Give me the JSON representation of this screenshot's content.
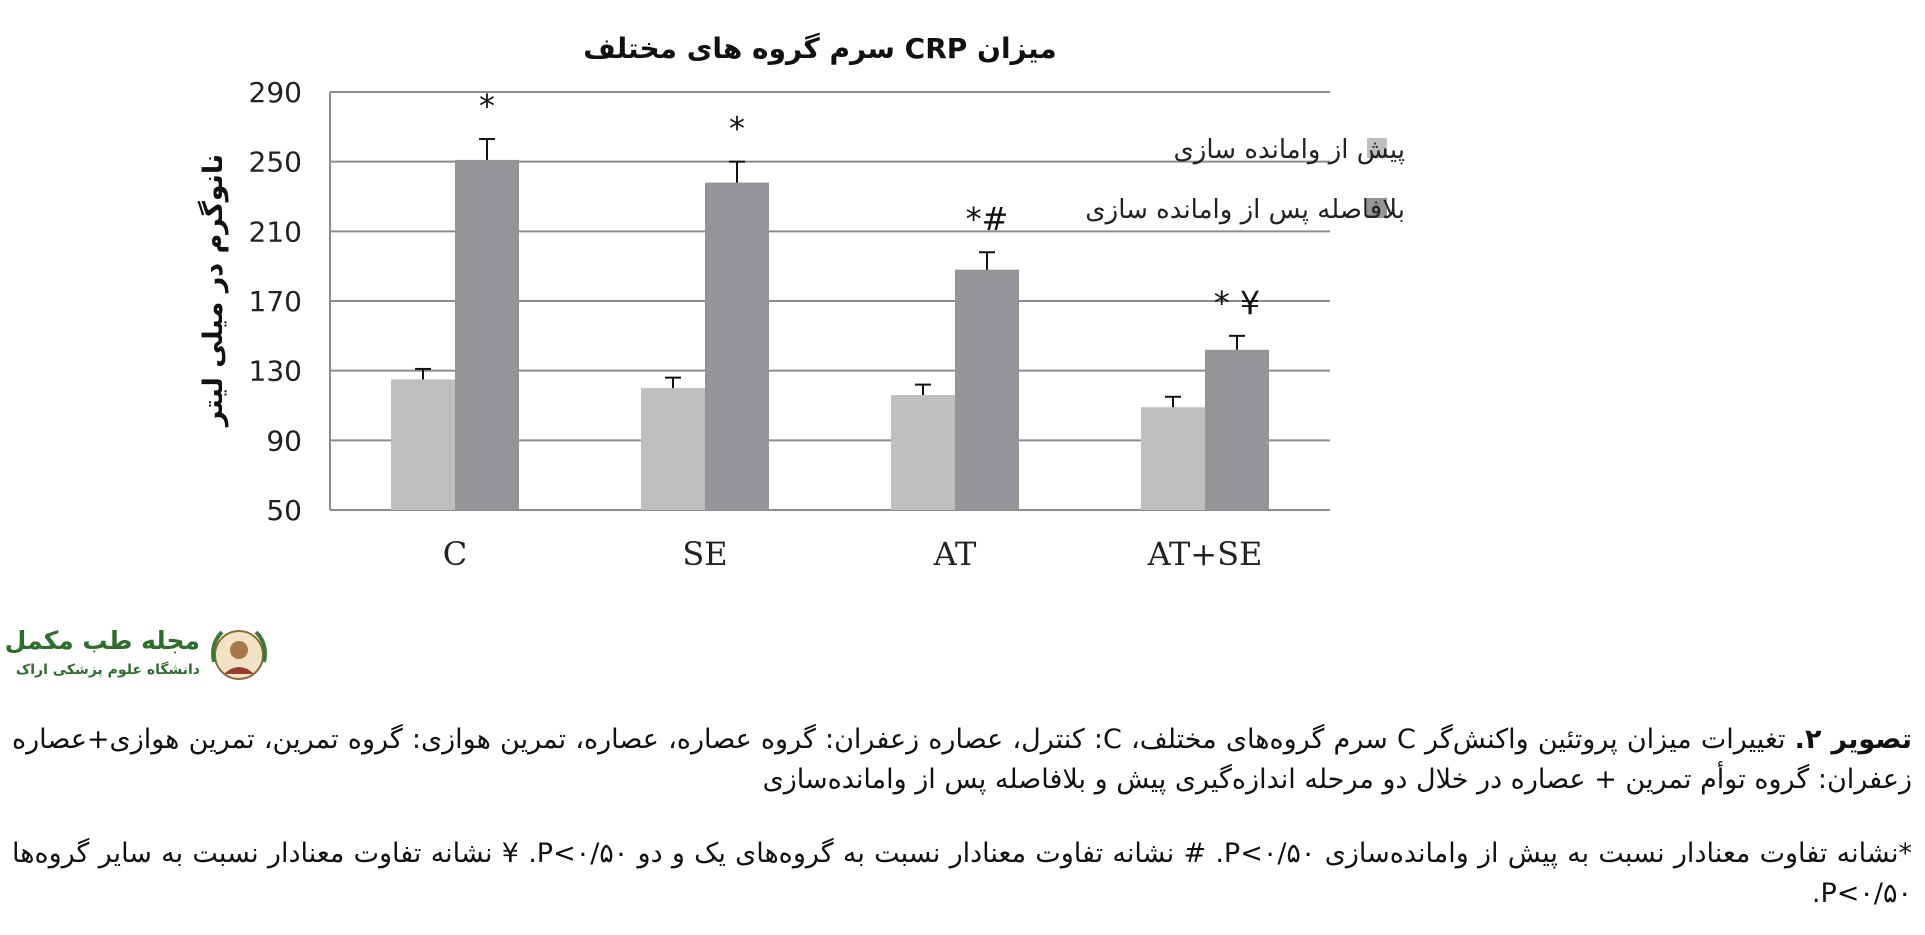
{
  "chart_data": {
    "type": "bar",
    "title": "میزان CRP سرم گروه های مختلف",
    "ylabel": "نانوگرم در میلی لیتر",
    "xlabel": "",
    "ylim": [
      50,
      290
    ],
    "yticks": [
      50,
      90,
      130,
      170,
      210,
      250,
      290
    ],
    "grid": true,
    "legend_position": "right",
    "categories": [
      "C",
      "SE",
      "AT",
      "AT+SE"
    ],
    "series": [
      {
        "name": "پیش از وامانده سازی",
        "color": "#bfbfbf",
        "values": [
          125,
          120,
          116,
          109
        ],
        "errors": [
          6,
          6,
          6,
          6
        ]
      },
      {
        "name": "بلافاصله پس از وامانده سازی",
        "color": "#939598",
        "values": [
          251,
          238,
          188,
          142
        ],
        "errors": [
          12,
          12,
          10,
          8
        ]
      }
    ],
    "annotations": [
      "*",
      "*",
      "*#",
      "* ¥"
    ]
  },
  "logo": {
    "title": "مجله طب مکمل",
    "subtitle": "دانشگاه علوم پزشکی اراک"
  },
  "caption": {
    "label": "تصویر ۲.",
    "text": " تغییرات میزان پروتئین واکنش‌گر C سرم گروه‌های مختلف، C: کنترل، عصاره زعفران: گروه عصاره، عصاره، تمرین هوازی: گروه تمرین، تمرین هوازی+عصاره زعفران: گروه توأم تمرین + عصاره در خلال دو مرحله اندازه‌گیری پیش و بلافاصله پس از وامانده‌سازی",
    "note": "*نشانه تفاوت معنادار نسبت به پیش از وامانده‌سازی P<۰/۵۰. # نشانه تفاوت معنادار نسبت به گروه‌های یک و دو P<۰/۵۰. ¥ نشانه تفاوت معنادار نسبت به سایر گروه‌ها P<۰/۵۰."
  }
}
